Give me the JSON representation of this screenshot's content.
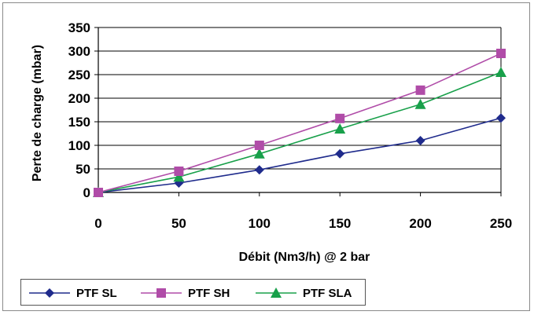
{
  "chart_data": {
    "type": "line",
    "title": "",
    "xlabel": "Débit (Nm3/h) @ 2 bar",
    "ylabel": "Perte de charge (mbar)",
    "x": [
      0,
      50,
      100,
      150,
      200,
      250
    ],
    "xticks": [
      "0",
      "50",
      "100",
      "150",
      "200",
      "250"
    ],
    "yticks": [
      "0",
      "50",
      "100",
      "150",
      "200",
      "250",
      "300",
      "350"
    ],
    "xlim": [
      0,
      250
    ],
    "ylim": [
      0,
      350
    ],
    "grid": "horizontal",
    "legend_position": "bottom-left",
    "series": [
      {
        "name": "PTF SL",
        "values": [
          0,
          20,
          48,
          82,
          110,
          158
        ],
        "color": "#1f2b8c",
        "marker": "diamond"
      },
      {
        "name": "PTF SH",
        "values": [
          0,
          45,
          100,
          157,
          217,
          295
        ],
        "color": "#b04ca8",
        "marker": "square"
      },
      {
        "name": "PTF SLA",
        "values": [
          0,
          33,
          82,
          135,
          187,
          255
        ],
        "color": "#18a04a",
        "marker": "triangle"
      }
    ]
  }
}
